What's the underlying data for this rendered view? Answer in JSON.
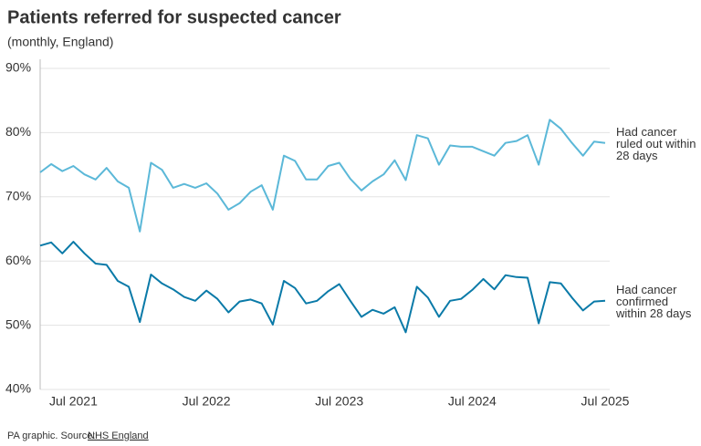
{
  "chart_data": {
    "type": "line",
    "title": "Patients referred for suspected cancer",
    "subtitle": "(monthly, England)",
    "source_prefix": "PA graphic. Source:",
    "source_link": "NHS England",
    "categories": [
      null,
      null,
      null,
      "Jul 2021",
      null,
      null,
      null,
      null,
      null,
      null,
      null,
      null,
      null,
      null,
      null,
      "Jul 2022",
      null,
      null,
      null,
      null,
      null,
      null,
      null,
      null,
      null,
      null,
      null,
      "Jul 2023",
      null,
      null,
      null,
      null,
      null,
      null,
      null,
      null,
      null,
      null,
      null,
      "Jul 2024",
      null,
      null,
      null,
      null,
      null,
      null,
      null,
      null,
      null,
      null,
      null,
      "Jul 2025"
    ],
    "series": [
      {
        "name": "Had cancer ruled out within 28 days",
        "color": "#5bb8d8",
        "values": [
          73.8,
          75.1,
          74.0,
          74.8,
          73.5,
          72.7,
          74.5,
          72.4,
          71.4,
          64.6,
          75.3,
          74.2,
          71.4,
          72.0,
          71.4,
          72.1,
          70.5,
          68.0,
          69.0,
          70.8,
          71.8,
          68.0,
          76.4,
          75.6,
          72.7,
          72.7,
          74.8,
          75.3,
          72.8,
          71.0,
          72.4,
          73.5,
          75.7,
          72.6,
          79.6,
          79.1,
          75.0,
          78.0,
          77.8,
          77.8,
          77.1,
          76.4,
          78.4,
          78.7,
          79.6,
          75.0,
          82.0,
          80.6,
          78.4,
          76.4,
          78.6,
          78.4
        ]
      },
      {
        "name": "Had cancer confirmed within 28 days",
        "color": "#0a7aa8",
        "values": [
          62.4,
          62.9,
          61.2,
          63.0,
          61.2,
          59.6,
          59.4,
          56.9,
          56.0,
          50.5,
          57.9,
          56.5,
          55.6,
          54.4,
          53.8,
          55.4,
          54.1,
          52.0,
          53.7,
          54.0,
          53.4,
          50.1,
          56.9,
          55.8,
          53.4,
          53.8,
          55.3,
          56.4,
          53.8,
          51.3,
          52.4,
          51.8,
          52.8,
          48.9,
          56.0,
          54.3,
          51.3,
          53.8,
          54.1,
          55.5,
          57.2,
          55.6,
          57.8,
          57.5,
          57.4,
          50.3,
          56.7,
          56.5,
          54.3,
          52.3,
          53.7,
          53.8
        ]
      }
    ],
    "ylim": [
      40,
      90
    ],
    "yticks": [
      {
        "value": 40,
        "label": "40%"
      },
      {
        "value": 50,
        "label": "50%"
      },
      {
        "value": 60,
        "label": "60%"
      },
      {
        "value": 70,
        "label": "70%"
      },
      {
        "value": 80,
        "label": "80%"
      },
      {
        "value": 90,
        "label": "90%"
      }
    ],
    "grid": true
  }
}
